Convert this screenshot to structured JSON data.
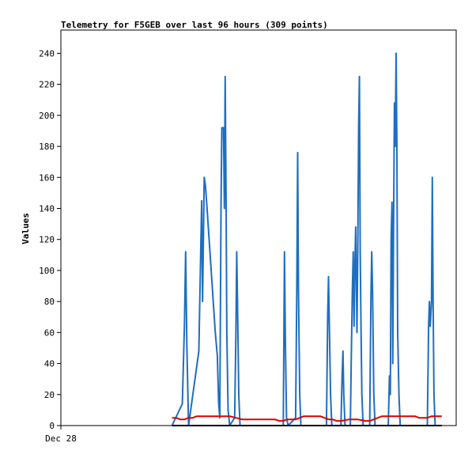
{
  "chart_data": {
    "type": "line",
    "title": "Telemetry for F5GEB over last 96 hours (309 points)",
    "xlabel": "",
    "ylabel": "Values",
    "x_tick_labels": [
      {
        "x": 0,
        "label": "Dec 28"
      }
    ],
    "xlim": [
      0,
      96
    ],
    "ylim": [
      0,
      255
    ],
    "y_ticks": [
      0,
      20,
      40,
      60,
      80,
      100,
      120,
      140,
      160,
      180,
      200,
      220,
      240
    ],
    "grid": false,
    "legend": "none",
    "series": [
      {
        "color": "#1f6ebf",
        "points": [
          [
            27.0,
            0
          ],
          [
            29.5,
            14
          ],
          [
            30.0,
            65
          ],
          [
            30.3,
            112
          ],
          [
            30.6,
            50
          ],
          [
            31.0,
            0
          ],
          [
            33.5,
            48
          ],
          [
            34.2,
            145
          ],
          [
            34.4,
            80
          ],
          [
            34.8,
            160
          ],
          [
            35.1,
            155
          ],
          [
            35.5,
            140
          ],
          [
            36.0,
            120
          ],
          [
            36.5,
            100
          ],
          [
            37.0,
            80
          ],
          [
            37.5,
            60
          ],
          [
            38.0,
            45
          ],
          [
            38.3,
            15
          ],
          [
            38.6,
            5
          ],
          [
            38.9,
            145
          ],
          [
            39.1,
            192
          ],
          [
            39.5,
            192
          ],
          [
            39.7,
            140
          ],
          [
            39.9,
            225
          ],
          [
            40.1,
            150
          ],
          [
            40.3,
            60
          ],
          [
            40.6,
            10
          ],
          [
            41.0,
            0
          ],
          [
            42.2,
            5
          ],
          [
            42.5,
            60
          ],
          [
            42.7,
            112
          ],
          [
            42.9,
            80
          ],
          [
            43.2,
            20
          ],
          [
            43.5,
            0
          ],
          [
            54.0,
            0
          ],
          [
            54.3,
            112
          ],
          [
            54.5,
            56
          ],
          [
            54.8,
            5
          ],
          [
            55.2,
            0
          ],
          [
            57.0,
            5
          ],
          [
            57.3,
            88
          ],
          [
            57.5,
            176
          ],
          [
            57.7,
            88
          ],
          [
            58.0,
            20
          ],
          [
            58.3,
            0
          ],
          [
            64.5,
            0
          ],
          [
            64.8,
            72
          ],
          [
            65.0,
            96
          ],
          [
            65.2,
            64
          ],
          [
            65.5,
            20
          ],
          [
            65.8,
            0
          ],
          [
            68.0,
            0
          ],
          [
            68.3,
            32
          ],
          [
            68.5,
            48
          ],
          [
            68.7,
            20
          ],
          [
            69.0,
            0
          ],
          [
            70.3,
            0
          ],
          [
            70.5,
            40
          ],
          [
            70.8,
            88
          ],
          [
            71.0,
            112
          ],
          [
            71.2,
            64
          ],
          [
            71.4,
            104
          ],
          [
            71.6,
            128
          ],
          [
            71.9,
            60
          ],
          [
            72.1,
            112
          ],
          [
            72.3,
            192
          ],
          [
            72.5,
            225
          ],
          [
            72.7,
            112
          ],
          [
            72.9,
            60
          ],
          [
            73.1,
            20
          ],
          [
            73.4,
            0
          ],
          [
            75.0,
            0
          ],
          [
            75.3,
            84
          ],
          [
            75.5,
            112
          ],
          [
            75.7,
            84
          ],
          [
            76.0,
            20
          ],
          [
            76.3,
            0
          ],
          [
            79.5,
            0
          ],
          [
            79.8,
            32
          ],
          [
            80.0,
            20
          ],
          [
            80.2,
            120
          ],
          [
            80.4,
            144
          ],
          [
            80.6,
            40
          ],
          [
            80.8,
            128
          ],
          [
            81.0,
            208
          ],
          [
            81.2,
            180
          ],
          [
            81.4,
            240
          ],
          [
            81.6,
            180
          ],
          [
            81.8,
            60
          ],
          [
            82.1,
            20
          ],
          [
            82.4,
            0
          ],
          [
            89.0,
            0
          ],
          [
            89.3,
            64
          ],
          [
            89.5,
            80
          ],
          [
            89.7,
            64
          ],
          [
            90.0,
            80
          ],
          [
            90.2,
            160
          ],
          [
            90.4,
            80
          ],
          [
            90.6,
            20
          ],
          [
            90.9,
            0
          ]
        ]
      },
      {
        "color": "#dd0000",
        "points": [
          [
            27.0,
            5
          ],
          [
            28.0,
            5
          ],
          [
            29.0,
            4
          ],
          [
            30.0,
            4
          ],
          [
            31.0,
            5
          ],
          [
            32.0,
            5
          ],
          [
            33.0,
            6
          ],
          [
            34.0,
            6
          ],
          [
            35.0,
            6
          ],
          [
            38.0,
            6
          ],
          [
            41.0,
            6
          ],
          [
            42.5,
            5
          ],
          [
            44.0,
            4
          ],
          [
            48.0,
            4
          ],
          [
            52.0,
            4
          ],
          [
            53.0,
            3
          ],
          [
            54.0,
            3
          ],
          [
            55.0,
            4
          ],
          [
            56.0,
            4
          ],
          [
            57.0,
            4
          ],
          [
            58.0,
            5
          ],
          [
            59.0,
            6
          ],
          [
            60.0,
            6
          ],
          [
            62.0,
            6
          ],
          [
            63.0,
            6
          ],
          [
            64.0,
            5
          ],
          [
            65.0,
            4
          ],
          [
            66.0,
            4
          ],
          [
            67.0,
            3
          ],
          [
            68.0,
            3
          ],
          [
            70.0,
            4
          ],
          [
            72.0,
            4
          ],
          [
            74.0,
            3
          ],
          [
            75.0,
            3
          ],
          [
            76.0,
            4
          ],
          [
            77.0,
            5
          ],
          [
            78.0,
            6
          ],
          [
            80.0,
            6
          ],
          [
            82.0,
            6
          ],
          [
            86.0,
            6
          ],
          [
            87.0,
            5
          ],
          [
            88.0,
            5
          ],
          [
            89.0,
            5
          ],
          [
            90.0,
            6
          ],
          [
            92.5,
            6
          ]
        ]
      },
      {
        "color": "#000000",
        "points": [
          [
            27.0,
            0
          ],
          [
            92.5,
            0
          ]
        ]
      }
    ]
  }
}
